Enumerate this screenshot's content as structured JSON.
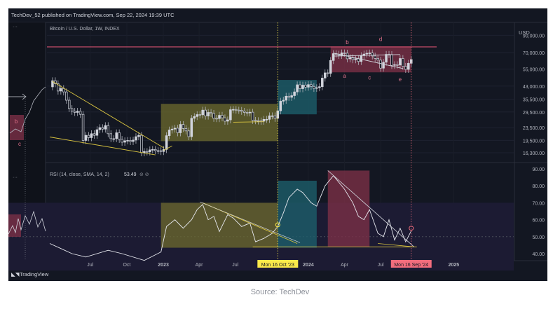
{
  "header": {
    "publisher": "TechDev_52 published on TradingView.com, Sep 22, 2024 19:39 UTC"
  },
  "source": "Source: TechDev",
  "branding": {
    "logo_text": "TradingView"
  },
  "chart_data": [
    {
      "type": "candlestick",
      "title": "Bitcoin / U.S. Dollar, 1W, INDEX",
      "currency": "USD",
      "scale": "log",
      "price_ticks": [
        90000,
        70000,
        55000,
        43000,
        35500,
        29500,
        23500,
        19500,
        16300
      ],
      "price_tick_labels": [
        "90,000.00",
        "70,000.00",
        "55,000.00",
        "43,000.00",
        "35,500.00",
        "29,500.00",
        "23,500.00",
        "19,500.00",
        "16,300.00"
      ],
      "horizontal_line": 76000,
      "pattern_labels": [
        "a",
        "b",
        "c",
        "d",
        "e"
      ],
      "left_pane_labels": [
        "b",
        "c"
      ],
      "price_path": [
        [
          "2022-03-21",
          42500
        ],
        [
          "2022-03-28",
          46500
        ],
        [
          "2022-04-04",
          44500
        ],
        [
          "2022-04-11",
          40000
        ],
        [
          "2022-04-18",
          41500
        ],
        [
          "2022-04-25",
          39500
        ],
        [
          "2022-05-02",
          35000
        ],
        [
          "2022-05-09",
          31000
        ],
        [
          "2022-05-16",
          29800
        ],
        [
          "2022-05-23",
          29300
        ],
        [
          "2022-05-30",
          29800
        ],
        [
          "2022-06-06",
          28500
        ],
        [
          "2022-06-13",
          19500
        ],
        [
          "2022-06-20",
          21000
        ],
        [
          "2022-06-27",
          20300
        ],
        [
          "2022-07-04",
          21500
        ],
        [
          "2022-07-11",
          21000
        ],
        [
          "2022-07-18",
          22800
        ],
        [
          "2022-07-25",
          23500
        ],
        [
          "2022-08-01",
          23000
        ],
        [
          "2022-08-08",
          24200
        ],
        [
          "2022-08-15",
          21500
        ],
        [
          "2022-08-22",
          20000
        ],
        [
          "2022-08-29",
          20000
        ],
        [
          "2022-09-05",
          21800
        ],
        [
          "2022-09-12",
          19800
        ],
        [
          "2022-09-19",
          19000
        ],
        [
          "2022-09-26",
          19400
        ],
        [
          "2022-10-03",
          19500
        ],
        [
          "2022-10-10",
          19200
        ],
        [
          "2022-10-17",
          19600
        ],
        [
          "2022-10-24",
          20600
        ],
        [
          "2022-10-31",
          21000
        ],
        [
          "2022-11-07",
          16300
        ],
        [
          "2022-11-14",
          16600
        ],
        [
          "2022-11-21",
          16500
        ],
        [
          "2022-11-28",
          17000
        ],
        [
          "2022-12-05",
          17100
        ],
        [
          "2022-12-12",
          16800
        ],
        [
          "2022-12-19",
          16800
        ],
        [
          "2022-12-26",
          16600
        ],
        [
          "2023-01-02",
          17100
        ],
        [
          "2023-01-09",
          20900
        ],
        [
          "2023-01-16",
          22700
        ],
        [
          "2023-01-23",
          23000
        ],
        [
          "2023-01-30",
          23300
        ],
        [
          "2023-02-06",
          21800
        ],
        [
          "2023-02-13",
          24600
        ],
        [
          "2023-02-20",
          23200
        ],
        [
          "2023-02-27",
          22400
        ],
        [
          "2023-03-06",
          20600
        ],
        [
          "2023-03-13",
          26900
        ],
        [
          "2023-03-20",
          27600
        ],
        [
          "2023-03-27",
          28400
        ],
        [
          "2023-04-03",
          28300
        ],
        [
          "2023-04-10",
          30300
        ],
        [
          "2023-04-17",
          27800
        ],
        [
          "2023-04-24",
          29300
        ],
        [
          "2023-05-01",
          28900
        ],
        [
          "2023-05-08",
          26900
        ],
        [
          "2023-05-15",
          26800
        ],
        [
          "2023-05-22",
          28100
        ],
        [
          "2023-05-29",
          27100
        ],
        [
          "2023-06-05",
          25800
        ],
        [
          "2023-06-12",
          26300
        ],
        [
          "2023-06-19",
          30500
        ],
        [
          "2023-06-26",
          30600
        ],
        [
          "2023-07-03",
          30300
        ],
        [
          "2023-07-10",
          30200
        ],
        [
          "2023-07-17",
          29800
        ],
        [
          "2023-07-24",
          29300
        ],
        [
          "2023-07-31",
          29100
        ],
        [
          "2023-08-07",
          29400
        ],
        [
          "2023-08-14",
          26100
        ],
        [
          "2023-08-21",
          26000
        ],
        [
          "2023-08-28",
          25900
        ],
        [
          "2023-09-04",
          25800
        ],
        [
          "2023-09-11",
          26500
        ],
        [
          "2023-09-18",
          26500
        ],
        [
          "2023-09-25",
          27900
        ],
        [
          "2023-10-02",
          27900
        ],
        [
          "2023-10-09",
          26900
        ],
        [
          "2023-10-16",
          30000
        ],
        [
          "2023-10-23",
          34500
        ],
        [
          "2023-10-30",
          35000
        ],
        [
          "2023-11-06",
          37100
        ],
        [
          "2023-11-13",
          36500
        ],
        [
          "2023-11-20",
          37400
        ],
        [
          "2023-11-27",
          39500
        ],
        [
          "2023-12-04",
          43800
        ],
        [
          "2023-12-11",
          41400
        ],
        [
          "2023-12-18",
          43600
        ],
        [
          "2023-12-25",
          42300
        ],
        [
          "2024-01-01",
          43900
        ],
        [
          "2024-01-08",
          42800
        ],
        [
          "2024-01-15",
          41600
        ],
        [
          "2024-01-22",
          42000
        ],
        [
          "2024-01-29",
          42600
        ],
        [
          "2024-02-05",
          48300
        ],
        [
          "2024-02-12",
          52100
        ],
        [
          "2024-02-19",
          51700
        ],
        [
          "2024-02-26",
          62400
        ],
        [
          "2024-03-04",
          68900
        ],
        [
          "2024-03-11",
          68400
        ],
        [
          "2024-03-18",
          67200
        ],
        [
          "2024-03-25",
          69700
        ],
        [
          "2024-04-01",
          69400
        ],
        [
          "2024-04-08",
          63900
        ],
        [
          "2024-04-15",
          64900
        ],
        [
          "2024-04-22",
          63100
        ],
        [
          "2024-04-29",
          63900
        ],
        [
          "2024-05-06",
          61500
        ],
        [
          "2024-05-13",
          66900
        ],
        [
          "2024-05-20",
          68500
        ],
        [
          "2024-05-27",
          69300
        ],
        [
          "2024-06-03",
          69600
        ],
        [
          "2024-06-10",
          66600
        ],
        [
          "2024-06-17",
          64300
        ],
        [
          "2024-06-24",
          62700
        ],
        [
          "2024-07-01",
          55800
        ],
        [
          "2024-07-08",
          60800
        ],
        [
          "2024-07-15",
          68200
        ],
        [
          "2024-07-22",
          68000
        ],
        [
          "2024-07-29",
          58100
        ],
        [
          "2024-08-05",
          58700
        ],
        [
          "2024-08-12",
          58400
        ],
        [
          "2024-08-19",
          64200
        ],
        [
          "2024-08-26",
          57300
        ],
        [
          "2024-09-02",
          54800
        ],
        [
          "2024-09-09",
          59900
        ],
        [
          "2024-09-16",
          63300
        ]
      ],
      "rsi": {
        "label": "RSI (14, close, SMA, 14, 2)",
        "value": "53.49",
        "ticks": [
          90,
          80,
          70,
          60,
          50,
          40
        ],
        "tick_labels": [
          "90.00",
          "80.00",
          "70.00",
          "60.00",
          "50.00",
          "40.00"
        ],
        "band": [
          30,
          70
        ],
        "midline": 50
      },
      "x_ticks": [
        [
          "2022-07-01",
          "Jul"
        ],
        [
          "2022-10-01",
          "Oct"
        ],
        [
          "2023-01-01",
          "2023"
        ],
        [
          "2023-04-01",
          "Apr"
        ],
        [
          "2023-07-01",
          "Jul"
        ],
        [
          "2024-01-01",
          "2024"
        ],
        [
          "2024-04-01",
          "Apr"
        ],
        [
          "2024-07-01",
          "Jul"
        ],
        [
          "2025-01-01",
          "2025"
        ]
      ],
      "markers": [
        {
          "date": "2023-10-16",
          "label": "Mon 16 Oct '23",
          "color": "#fbe94a"
        },
        {
          "date": "2024-09-16",
          "label": "Mon 16 Sep '24",
          "color": "#f26d7d"
        }
      ],
      "colors": {
        "up": "#c9ccd2",
        "down": "#c9ccd2",
        "yellow_box": "#6e6b2d",
        "teal_box": "#1d5e6a",
        "red_box": "#7a2f46"
      }
    }
  ]
}
